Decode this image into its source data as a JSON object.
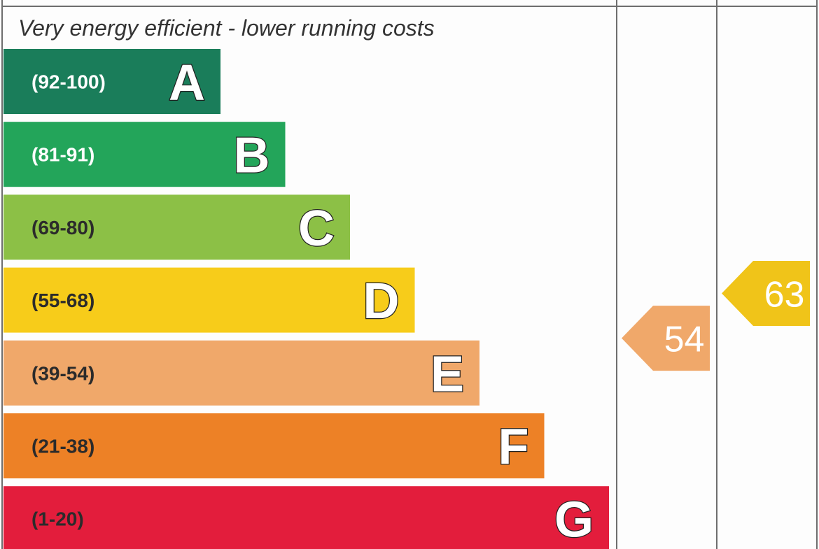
{
  "chart_data": {
    "type": "bar",
    "header": "Very energy efficient - lower running costs",
    "bands": [
      {
        "letter": "A",
        "range": "(92-100)",
        "color": "#1a7d5a",
        "range_color": "#ffffff"
      },
      {
        "letter": "B",
        "range": "(81-91)",
        "color": "#23a55a",
        "range_color": "#ffffff"
      },
      {
        "letter": "C",
        "range": "(69-80)",
        "color": "#8cc046",
        "range_color": "#2b2b2b"
      },
      {
        "letter": "D",
        "range": "(55-68)",
        "color": "#f7cc1a",
        "range_color": "#2b2b2b"
      },
      {
        "letter": "E",
        "range": "(39-54)",
        "color": "#f0a86a",
        "range_color": "#2b2b2b"
      },
      {
        "letter": "F",
        "range": "(21-38)",
        "color": "#ed8126",
        "range_color": "#2b2b2b"
      },
      {
        "letter": "G",
        "range": "(1-20)",
        "color": "#e31d3c",
        "range_color": "#2b2b2b"
      }
    ],
    "ratings": [
      {
        "column": "current",
        "value": 54,
        "band": "E",
        "color": "#f0a86a"
      },
      {
        "column": "potential",
        "value": 63,
        "band": "D",
        "color": "#f0c419"
      }
    ]
  }
}
